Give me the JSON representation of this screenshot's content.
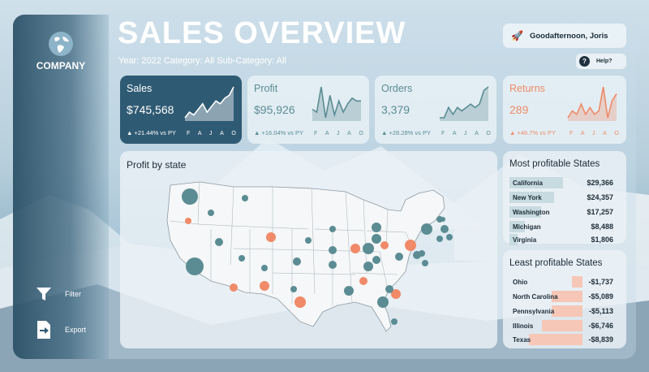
{
  "header": {
    "title": "SALES OVERVIEW",
    "filters": "Year: 2022  Category: All  Sub-Category: All",
    "greeting": "Goodafternoon, Joris",
    "help_label": "Help?",
    "help_icon": "?"
  },
  "sidebar": {
    "company": "COMPANY",
    "filter_label": "Filter",
    "export_label": "Export"
  },
  "kpis": [
    {
      "label": "Sales",
      "value": "$745,568",
      "change": "▲ +21.44% vs PY",
      "months": "F A J A O",
      "trend": [
        3,
        5,
        4,
        6,
        8,
        5,
        7,
        9,
        8,
        10,
        11,
        14
      ],
      "theme": "dark"
    },
    {
      "label": "Profit",
      "value": "$95,926",
      "change": "▲ +16.04% vs PY",
      "months": "F A J A O",
      "trend": [
        6,
        5,
        14,
        3,
        11,
        4,
        9,
        5,
        8,
        10,
        9,
        9
      ],
      "theme": "light"
    },
    {
      "label": "Orders",
      "value": "3,379",
      "change": "▲ +28.28% vs PY",
      "months": "F A J A O",
      "trend": [
        4,
        4,
        7,
        5,
        7,
        6,
        7,
        8,
        7,
        8,
        12,
        13
      ],
      "theme": "light"
    },
    {
      "label": "Returns",
      "value": "289",
      "change": "▲ +46.7% vs PY",
      "months": "F A J A O",
      "trend": [
        3,
        5,
        4,
        7,
        4,
        6,
        4,
        5,
        12,
        3,
        8,
        10
      ],
      "theme": "light"
    }
  ],
  "map": {
    "title": "Profit by state",
    "colors": {
      "profit": "#5b8c93",
      "loss": "#f08a68"
    }
  },
  "most_profitable": {
    "title": "Most profitable States",
    "rows": [
      {
        "state": "California",
        "amount": "$29,366",
        "value": 29366
      },
      {
        "state": "New York",
        "amount": "$24,357",
        "value": 24357
      },
      {
        "state": "Washington",
        "amount": "$17,257",
        "value": 17257
      },
      {
        "state": "Michigan",
        "amount": "$8,488",
        "value": 8488
      },
      {
        "state": "Virginia",
        "amount": "$1,806",
        "value": 1806
      }
    ]
  },
  "least_profitable": {
    "title": "Least profitable States",
    "rows": [
      {
        "state": "Ohio",
        "amount": "-$1,737",
        "value": 1737
      },
      {
        "state": "North Carolina",
        "amount": "-$5,089",
        "value": 5089
      },
      {
        "state": "Pennsylvania",
        "amount": "-$5,113",
        "value": 5113
      },
      {
        "state": "Illinois",
        "amount": "-$6,746",
        "value": 6746
      },
      {
        "state": "Texas",
        "amount": "-$8,839",
        "value": 8839
      }
    ]
  }
}
